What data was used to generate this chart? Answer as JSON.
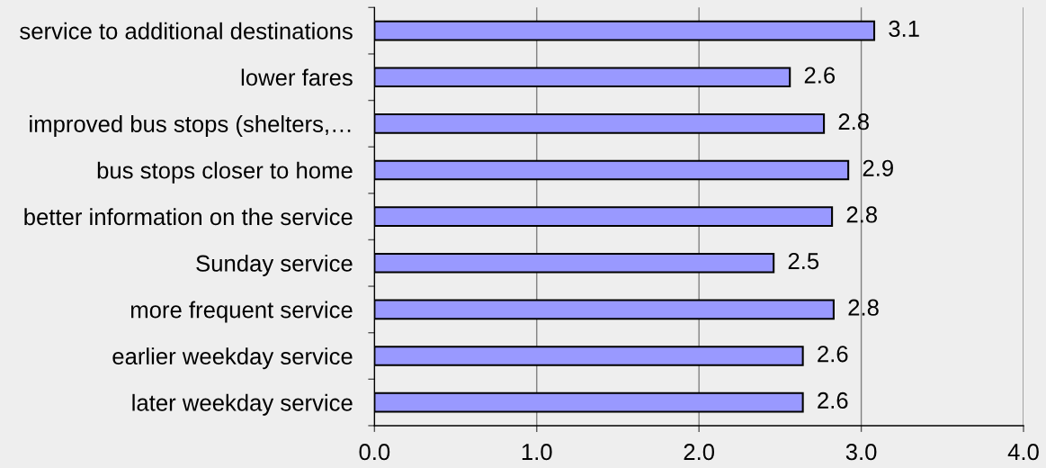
{
  "chart_data": {
    "type": "bar",
    "orientation": "horizontal",
    "categories": [
      "service to additional destinations",
      "lower fares",
      "improved bus stops (shelters,…",
      "bus stops closer to home",
      "better information on the service",
      "Sunday service",
      "more frequent service",
      "earlier weekday service",
      "later weekday service"
    ],
    "values": [
      3.08,
      2.56,
      2.77,
      2.92,
      2.82,
      2.46,
      2.83,
      2.64,
      2.64
    ],
    "value_labels": [
      "3.1",
      "2.6",
      "2.8",
      "2.9",
      "2.8",
      "2.5",
      "2.8",
      "2.6",
      "2.6"
    ],
    "color": "#9999ff",
    "xlim": [
      0,
      4
    ],
    "xticks": [
      {
        "value": 0,
        "label": "0.0"
      },
      {
        "value": 1,
        "label": "1.0"
      },
      {
        "value": 2,
        "label": "2.0"
      },
      {
        "value": 3,
        "label": "3.0"
      },
      {
        "value": 4,
        "label": "4.0"
      }
    ],
    "grid": "x"
  }
}
